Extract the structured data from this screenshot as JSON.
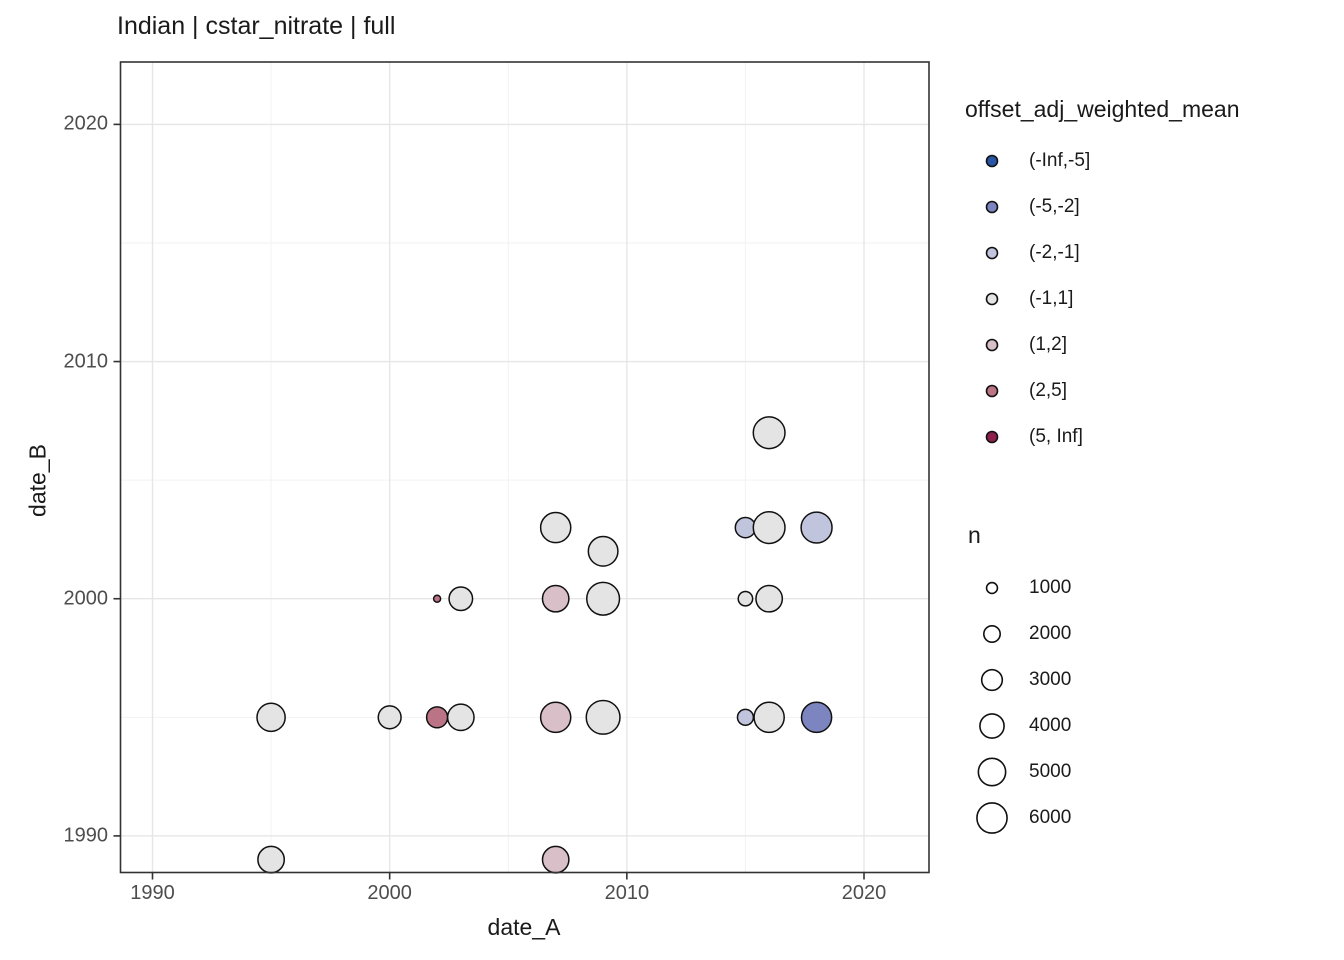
{
  "title": "Indian | cstar_nitrate | full",
  "chart_data": {
    "type": "scatter",
    "title": "Indian | cstar_nitrate | full",
    "xlabel": "date_A",
    "ylabel": "date_B",
    "xlim": [
      1988.6,
      2022.8
    ],
    "ylim": [
      1988.5,
      2022.6
    ],
    "x_ticks": [
      1990,
      2000,
      2010,
      2020
    ],
    "y_ticks": [
      1990,
      2000,
      2010,
      2020
    ],
    "x_minor_gridlines": [
      1995,
      2005,
      2015
    ],
    "y_minor_gridlines": [
      1995,
      2005,
      2015
    ],
    "grid": true,
    "legend_position": "right",
    "bin_colors": {
      "(-Inf,-5]": "#2a54a4",
      "(-5,-2]": "#7d85c0",
      "(-2,-1]": "#c0c4dc",
      "(-1,1]": "#e4e4e4",
      "(1,2]": "#d9bfc7",
      "(2,5]": "#bb7486",
      "(5, Inf]": "#8c2150"
    },
    "points": [
      {
        "x": 1995,
        "y": 1995,
        "n": 5300,
        "bin": "(-1,1]"
      },
      {
        "x": 1995,
        "y": 1989,
        "n": 4700,
        "bin": "(-1,1]"
      },
      {
        "x": 2000,
        "y": 1995,
        "n": 3600,
        "bin": "(-1,1]"
      },
      {
        "x": 2002,
        "y": 1995,
        "n": 3100,
        "bin": "(2,5]"
      },
      {
        "x": 2003,
        "y": 1995,
        "n": 4700,
        "bin": "(-1,1]"
      },
      {
        "x": 2002,
        "y": 2000,
        "n": 500,
        "bin": "(2,5]"
      },
      {
        "x": 2003,
        "y": 2000,
        "n": 3800,
        "bin": "(-1,1]"
      },
      {
        "x": 2007,
        "y": 2003,
        "n": 6000,
        "bin": "(-1,1]"
      },
      {
        "x": 2007,
        "y": 2000,
        "n": 4700,
        "bin": "(1,2]"
      },
      {
        "x": 2007,
        "y": 1995,
        "n": 6000,
        "bin": "(1,2]"
      },
      {
        "x": 2007,
        "y": 1989,
        "n": 4700,
        "bin": "(1,2]"
      },
      {
        "x": 2009,
        "y": 2002,
        "n": 5800,
        "bin": "(-1,1]"
      },
      {
        "x": 2009,
        "y": 2000,
        "n": 7000,
        "bin": "(-1,1]"
      },
      {
        "x": 2009,
        "y": 1995,
        "n": 7400,
        "bin": "(-1,1]"
      },
      {
        "x": 2015,
        "y": 2003,
        "n": 2900,
        "bin": "(-2,-1]"
      },
      {
        "x": 2016,
        "y": 2003,
        "n": 6600,
        "bin": "(-1,1]"
      },
      {
        "x": 2018,
        "y": 2003,
        "n": 6300,
        "bin": "(-2,-1]"
      },
      {
        "x": 2015,
        "y": 2000,
        "n": 1600,
        "bin": "(-1,1]"
      },
      {
        "x": 2016,
        "y": 2000,
        "n": 4700,
        "bin": "(-1,1]"
      },
      {
        "x": 2016,
        "y": 2007,
        "n": 6600,
        "bin": "(-1,1]"
      },
      {
        "x": 2015,
        "y": 1995,
        "n": 1900,
        "bin": "(-2,-1]"
      },
      {
        "x": 2016,
        "y": 1995,
        "n": 6000,
        "bin": "(-1,1]"
      },
      {
        "x": 2018,
        "y": 1995,
        "n": 6000,
        "bin": "(-5,-2]"
      }
    ]
  },
  "color_legend": {
    "title": "offset_adj_weighted_mean",
    "items": [
      {
        "label": "(-Inf,-5]",
        "color": "#2a54a4"
      },
      {
        "label": "(-5,-2]",
        "color": "#7d85c0"
      },
      {
        "label": "(-2,-1]",
        "color": "#c0c4dc"
      },
      {
        "label": "(-1,1]",
        "color": "#e4e4e4"
      },
      {
        "label": "(1,2]",
        "color": "#d9bfc7"
      },
      {
        "label": "(2,5]",
        "color": "#bb7486"
      },
      {
        "label": "(5, Inf]",
        "color": "#8c2150"
      }
    ]
  },
  "size_legend": {
    "title": "n",
    "items": [
      {
        "label": "1000",
        "n": 1000
      },
      {
        "label": "2000",
        "n": 2000
      },
      {
        "label": "3000",
        "n": 3000
      },
      {
        "label": "4000",
        "n": 4000
      },
      {
        "label": "5000",
        "n": 5000
      },
      {
        "label": "6000",
        "n": 6000
      }
    ]
  },
  "style": {
    "point_stroke": "#111111",
    "panel_border": "#333333",
    "major_grid": "#e6e6e6",
    "minor_grid": "#f2f2f2",
    "tick_mark": "#333333",
    "tick_text": "#4d4d4d",
    "panel_bg": "#ffffff"
  }
}
